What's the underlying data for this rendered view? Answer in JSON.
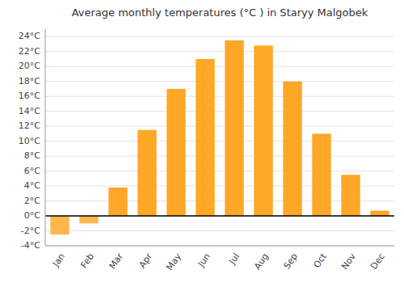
{
  "chart_data": {
    "type": "bar",
    "title": "Average monthly temperatures (°C ) in Staryy Malgobek",
    "categories": [
      "Jan",
      "Feb",
      "Mar",
      "Apr",
      "May",
      "Jun",
      "Jul",
      "Aug",
      "Sep",
      "Oct",
      "Nov",
      "Dec"
    ],
    "values": [
      -2.5,
      -1.0,
      3.8,
      11.5,
      17.0,
      21.0,
      23.5,
      22.8,
      18.0,
      11.0,
      5.5,
      0.7
    ],
    "colors": [
      "#FFB74D",
      "#FFB74D",
      "#FFA726",
      "#FFA726",
      "#FFA726",
      "#FFA726",
      "#FFA726",
      "#FFA726",
      "#FFA726",
      "#FFA726",
      "#FFA726",
      "#FFA726"
    ],
    "ylim": [
      -4,
      25
    ],
    "yticks": [
      {
        "value": -4,
        "label": "-4°C"
      },
      {
        "value": -2,
        "label": "-2°C"
      },
      {
        "value": 0,
        "label": "0°C"
      },
      {
        "value": 2,
        "label": "2°C"
      },
      {
        "value": 4,
        "label": "4°C"
      },
      {
        "value": 6,
        "label": "6°C"
      },
      {
        "value": 8,
        "label": "8°C"
      },
      {
        "value": 10,
        "label": "10°C"
      },
      {
        "value": 12,
        "label": "12°C"
      },
      {
        "value": 14,
        "label": "14°C"
      },
      {
        "value": 16,
        "label": "16°C"
      },
      {
        "value": 18,
        "label": "18°C"
      },
      {
        "value": 20,
        "label": "20°C"
      },
      {
        "value": 22,
        "label": "22°C"
      },
      {
        "value": 24,
        "label": "24°C"
      }
    ],
    "grid": true
  }
}
